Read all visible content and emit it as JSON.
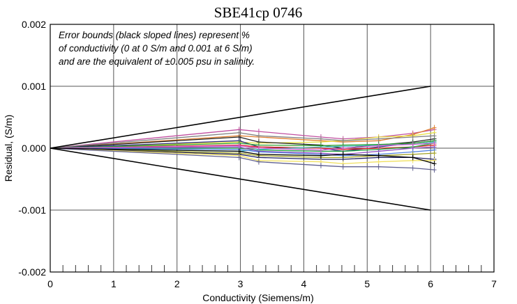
{
  "chart_data": {
    "type": "line",
    "title": "SBE41cp 0746",
    "xlabel": "Conductivity (Siemens/m)",
    "ylabel": "Residual, (S/m)",
    "xlim": [
      0,
      7
    ],
    "ylim": [
      -0.002,
      0.002
    ],
    "xticks": [
      "0",
      "1",
      "2",
      "3",
      "4",
      "5",
      "6",
      "7"
    ],
    "yticks": [
      "0.002",
      "0.001",
      "0.000",
      "-0.001",
      "-0.002"
    ],
    "grid": true,
    "annotation": [
      "Error bounds (black sloped lines) represent %",
      "of conductivity (0 at 0 S/m and 0.001 at 6 S/m)",
      "and are the equivalent of ±0.005 psu in salinity."
    ],
    "error_bounds": {
      "upper": [
        [
          0,
          0
        ],
        [
          6,
          0.001
        ]
      ],
      "lower": [
        [
          0,
          0
        ],
        [
          6,
          -0.001
        ]
      ],
      "color": "#000000"
    },
    "x": [
      0,
      2.98,
      3.29,
      4.27,
      4.62,
      5.18,
      5.72,
      6.06
    ],
    "series": [
      {
        "color": "#c04fa0",
        "values": [
          0,
          0.0003,
          0.00027,
          0.00018,
          0.00015,
          0.00018,
          0.00024,
          0.0003
        ]
      },
      {
        "color": "#e08030",
        "values": [
          0,
          0.0002,
          0.00018,
          0.00012,
          0.0001,
          0.00012,
          0.00022,
          0.00033
        ]
      },
      {
        "color": "#e8e040",
        "values": [
          0,
          0.0001,
          8e-05,
          0.0001,
          0.00012,
          0.00018,
          0.0002,
          0.00025
        ]
      },
      {
        "color": "#222222",
        "values": [
          0,
          0.00018,
          0.0001,
          5e-05,
          0.0,
          5e-05,
          0.0001,
          0.00015
        ]
      },
      {
        "color": "#303080",
        "values": [
          0,
          0.00012,
          2e-05,
          0.0,
          -5e-05,
          2e-05,
          8e-05,
          0.00012
        ]
      },
      {
        "color": "#e02020",
        "values": [
          0,
          5e-05,
          2e-05,
          0.0,
          -2e-05,
          0.0,
          2e-05,
          5e-05
        ]
      },
      {
        "color": "#20a040",
        "values": [
          0,
          0.0,
          -3e-05,
          -5e-05,
          -5e-05,
          -2e-05,
          2e-05,
          8e-05
        ]
      },
      {
        "color": "#40c0c0",
        "values": [
          0,
          -5e-05,
          -2e-05,
          2e-05,
          3e-05,
          5e-05,
          6e-05,
          0.0001
        ]
      },
      {
        "color": "#9050c0",
        "values": [
          0,
          2e-05,
          -5e-05,
          -8e-05,
          -0.0001,
          -5e-05,
          0.0,
          2e-05
        ]
      },
      {
        "color": "#5080e0",
        "values": [
          0,
          -2e-05,
          -6e-05,
          -0.0001,
          -0.00012,
          -0.0001,
          -6e-05,
          -3e-05
        ]
      },
      {
        "color": "#a0a020",
        "values": [
          0,
          -8e-05,
          -0.00012,
          -0.00015,
          -0.00015,
          -0.00012,
          -0.0001,
          -8e-05
        ]
      },
      {
        "color": "#202060",
        "values": [
          0,
          -0.0001,
          -0.00015,
          -0.00018,
          -0.00018,
          -0.00015,
          -0.00015,
          -0.00018
        ]
      },
      {
        "color": "#f0e060",
        "values": [
          0,
          -0.00012,
          -0.0002,
          -0.00022,
          -0.00025,
          -0.00022,
          -0.0002,
          -0.0002
        ]
      },
      {
        "color": "#606090",
        "values": [
          0,
          -0.00015,
          -0.00022,
          -0.00028,
          -0.0003,
          -0.0003,
          -0.00032,
          -0.00035
        ]
      },
      {
        "color": "#30a030",
        "values": [
          0,
          8e-05,
          5e-05,
          4e-05,
          5e-05,
          6e-05,
          8e-05,
          0.00012
        ]
      },
      {
        "color": "#d060d0",
        "values": [
          0,
          4e-05,
          0.0,
          -3e-05,
          0.0,
          4e-05,
          6e-05,
          8e-05
        ]
      },
      {
        "color": "#808080",
        "values": [
          0,
          0.00025,
          0.0002,
          0.00015,
          0.00012,
          0.00015,
          0.00018,
          0.0002
        ]
      },
      {
        "color": "#000000",
        "values": [
          0,
          -5e-05,
          -0.0001,
          -0.00012,
          -0.0001,
          -0.00012,
          -0.00015,
          -0.00025
        ]
      }
    ]
  }
}
